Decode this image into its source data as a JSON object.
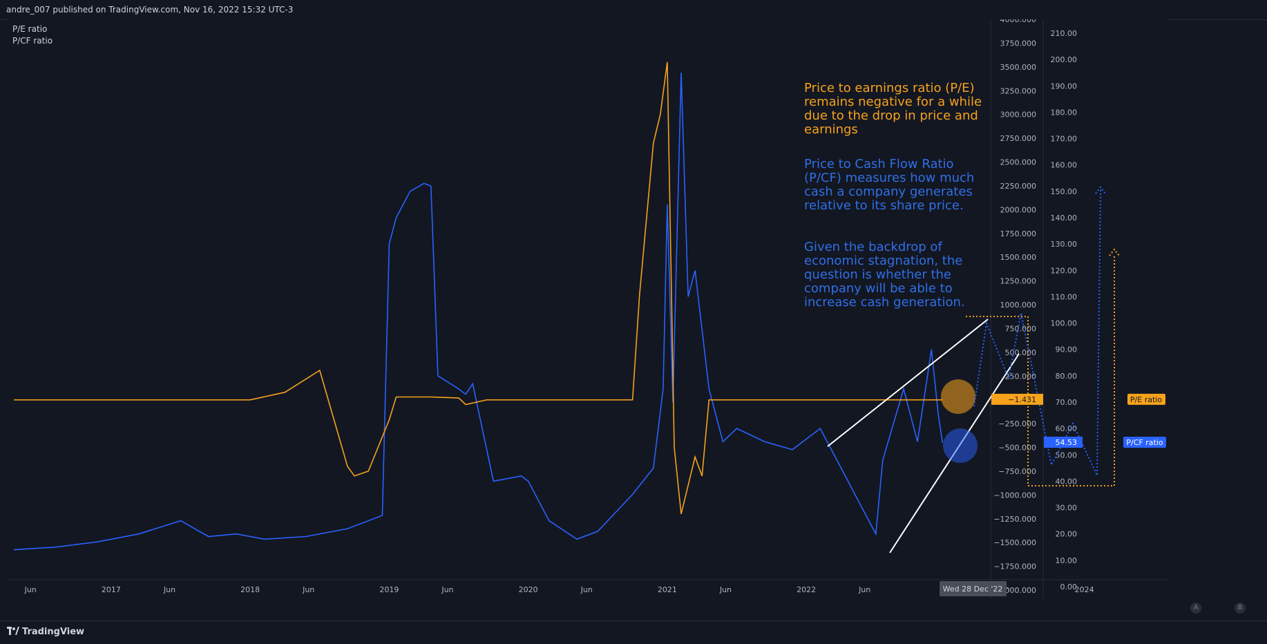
{
  "header": {
    "published": "andre_007 published on TradingView.com, Nov 16, 2022 15:32 UTC-3"
  },
  "legend": {
    "items": [
      "P/E ratio",
      "P/CF ratio"
    ]
  },
  "annotations": {
    "pe": "Price to earnings ratio (P/E) remains negative for a while due to the drop in price and earnings",
    "pcf": "Price to Cash Flow Ratio (P/CF) measures how much cash a company generates relative to its share price.",
    "question": "Given the backdrop of economic stagnation, the question is whether the company will be able to increase cash generation."
  },
  "badges": {
    "pe_label": "P/E ratio",
    "pe_value": "−1.431",
    "pcf_label": "P/CF ratio",
    "pcf_value": "54.53"
  },
  "crosshair_date": "Wed 28 Dec '22",
  "footer": {
    "brand": "TradingView",
    "btn_a": "A",
    "btn_b": "B"
  },
  "colors": {
    "pe": "#f7a21b",
    "pcf": "#2962ff",
    "bg": "#131722",
    "grid": "#2a2e39",
    "axis_text": "#b2b5be"
  },
  "chart_data": {
    "type": "line",
    "title": "",
    "x_ticks": [
      "Jun",
      "2017",
      "Jun",
      "2018",
      "Jun",
      "2019",
      "Jun",
      "2020",
      "Jun",
      "2021",
      "Jun",
      "2022",
      "Jun",
      "Jun",
      "2024"
    ],
    "left_axis": {
      "series": "P/E ratio",
      "ticks": [
        "4000.000",
        "3750.000",
        "3500.000",
        "3250.000",
        "3000.000",
        "2750.000",
        "2500.000",
        "2250.000",
        "2000.000",
        "1750.000",
        "1500.000",
        "1250.000",
        "1000.000",
        "750.000",
        "500.000",
        "250.000",
        "−250.000",
        "−500.000",
        "−750.000",
        "−1000.000",
        "−1250.000",
        "−1500.000",
        "−1750.000",
        "−2000.000"
      ],
      "range": [
        -2000,
        4000
      ]
    },
    "right_axis": {
      "series": "P/CF ratio",
      "ticks": [
        "210.00",
        "200.00",
        "190.00",
        "180.00",
        "170.00",
        "160.00",
        "150.00",
        "140.00",
        "130.00",
        "120.00",
        "110.00",
        "100.00",
        "90.00",
        "80.00",
        "70.00",
        "60.00",
        "50.00",
        "40.00",
        "30.00",
        "20.00",
        "10.00",
        "0.00"
      ],
      "range": [
        0,
        210
      ]
    },
    "series": [
      {
        "name": "P/E ratio",
        "axis": "left",
        "x": [
          2016.3,
          2017.0,
          2017.8,
          2018.0,
          2018.25,
          2018.5,
          2018.7,
          2018.75,
          2018.85,
          2019.0,
          2019.05,
          2019.3,
          2019.5,
          2019.55,
          2019.7,
          2020.0,
          2020.5,
          2020.75,
          2020.8,
          2020.9,
          2020.95,
          2021.0,
          2021.05,
          2021.1,
          2021.2,
          2021.25,
          2021.3,
          2021.5,
          2022.0,
          2022.5,
          2022.98
        ],
        "values": [
          0,
          0,
          0,
          0,
          80,
          310,
          -700,
          -800,
          -750,
          -210,
          30,
          30,
          20,
          -50,
          0,
          0,
          0,
          0,
          1100,
          2700,
          3000,
          3550,
          -500,
          -1200,
          -600,
          -800,
          0,
          0,
          0,
          0,
          0
        ]
      },
      {
        "name": "P/CF ratio",
        "axis": "right",
        "x": [
          2016.3,
          2016.6,
          2016.9,
          2017.2,
          2017.5,
          2017.7,
          2017.9,
          2018.1,
          2018.4,
          2018.7,
          2018.95,
          2019.0,
          2019.05,
          2019.15,
          2019.25,
          2019.3,
          2019.35,
          2019.5,
          2019.55,
          2019.6,
          2019.75,
          2019.95,
          2020.0,
          2020.15,
          2020.35,
          2020.5,
          2020.75,
          2020.9,
          2020.97,
          2021.0,
          2021.04,
          2021.1,
          2021.15,
          2021.2,
          2021.3,
          2021.4,
          2021.5,
          2021.7,
          2021.9,
          2022.1,
          2022.25,
          2022.4,
          2022.5,
          2022.55,
          2022.7,
          2022.8,
          2022.9,
          2022.95,
          2022.98
        ],
        "values": [
          14,
          15,
          17,
          20,
          25,
          19,
          20,
          18,
          19,
          22,
          27,
          130,
          140,
          150,
          153,
          152,
          80,
          75,
          73,
          77,
          40,
          42,
          40,
          25,
          18,
          21,
          35,
          45,
          75,
          145,
          70,
          195,
          110,
          120,
          75,
          55,
          60,
          55,
          52,
          60,
          45,
          30,
          20,
          48,
          75,
          55,
          90,
          65,
          54.53
        ]
      }
    ],
    "current_values": {
      "P/E ratio": -1.431,
      "P/CF ratio": 54.53
    }
  }
}
